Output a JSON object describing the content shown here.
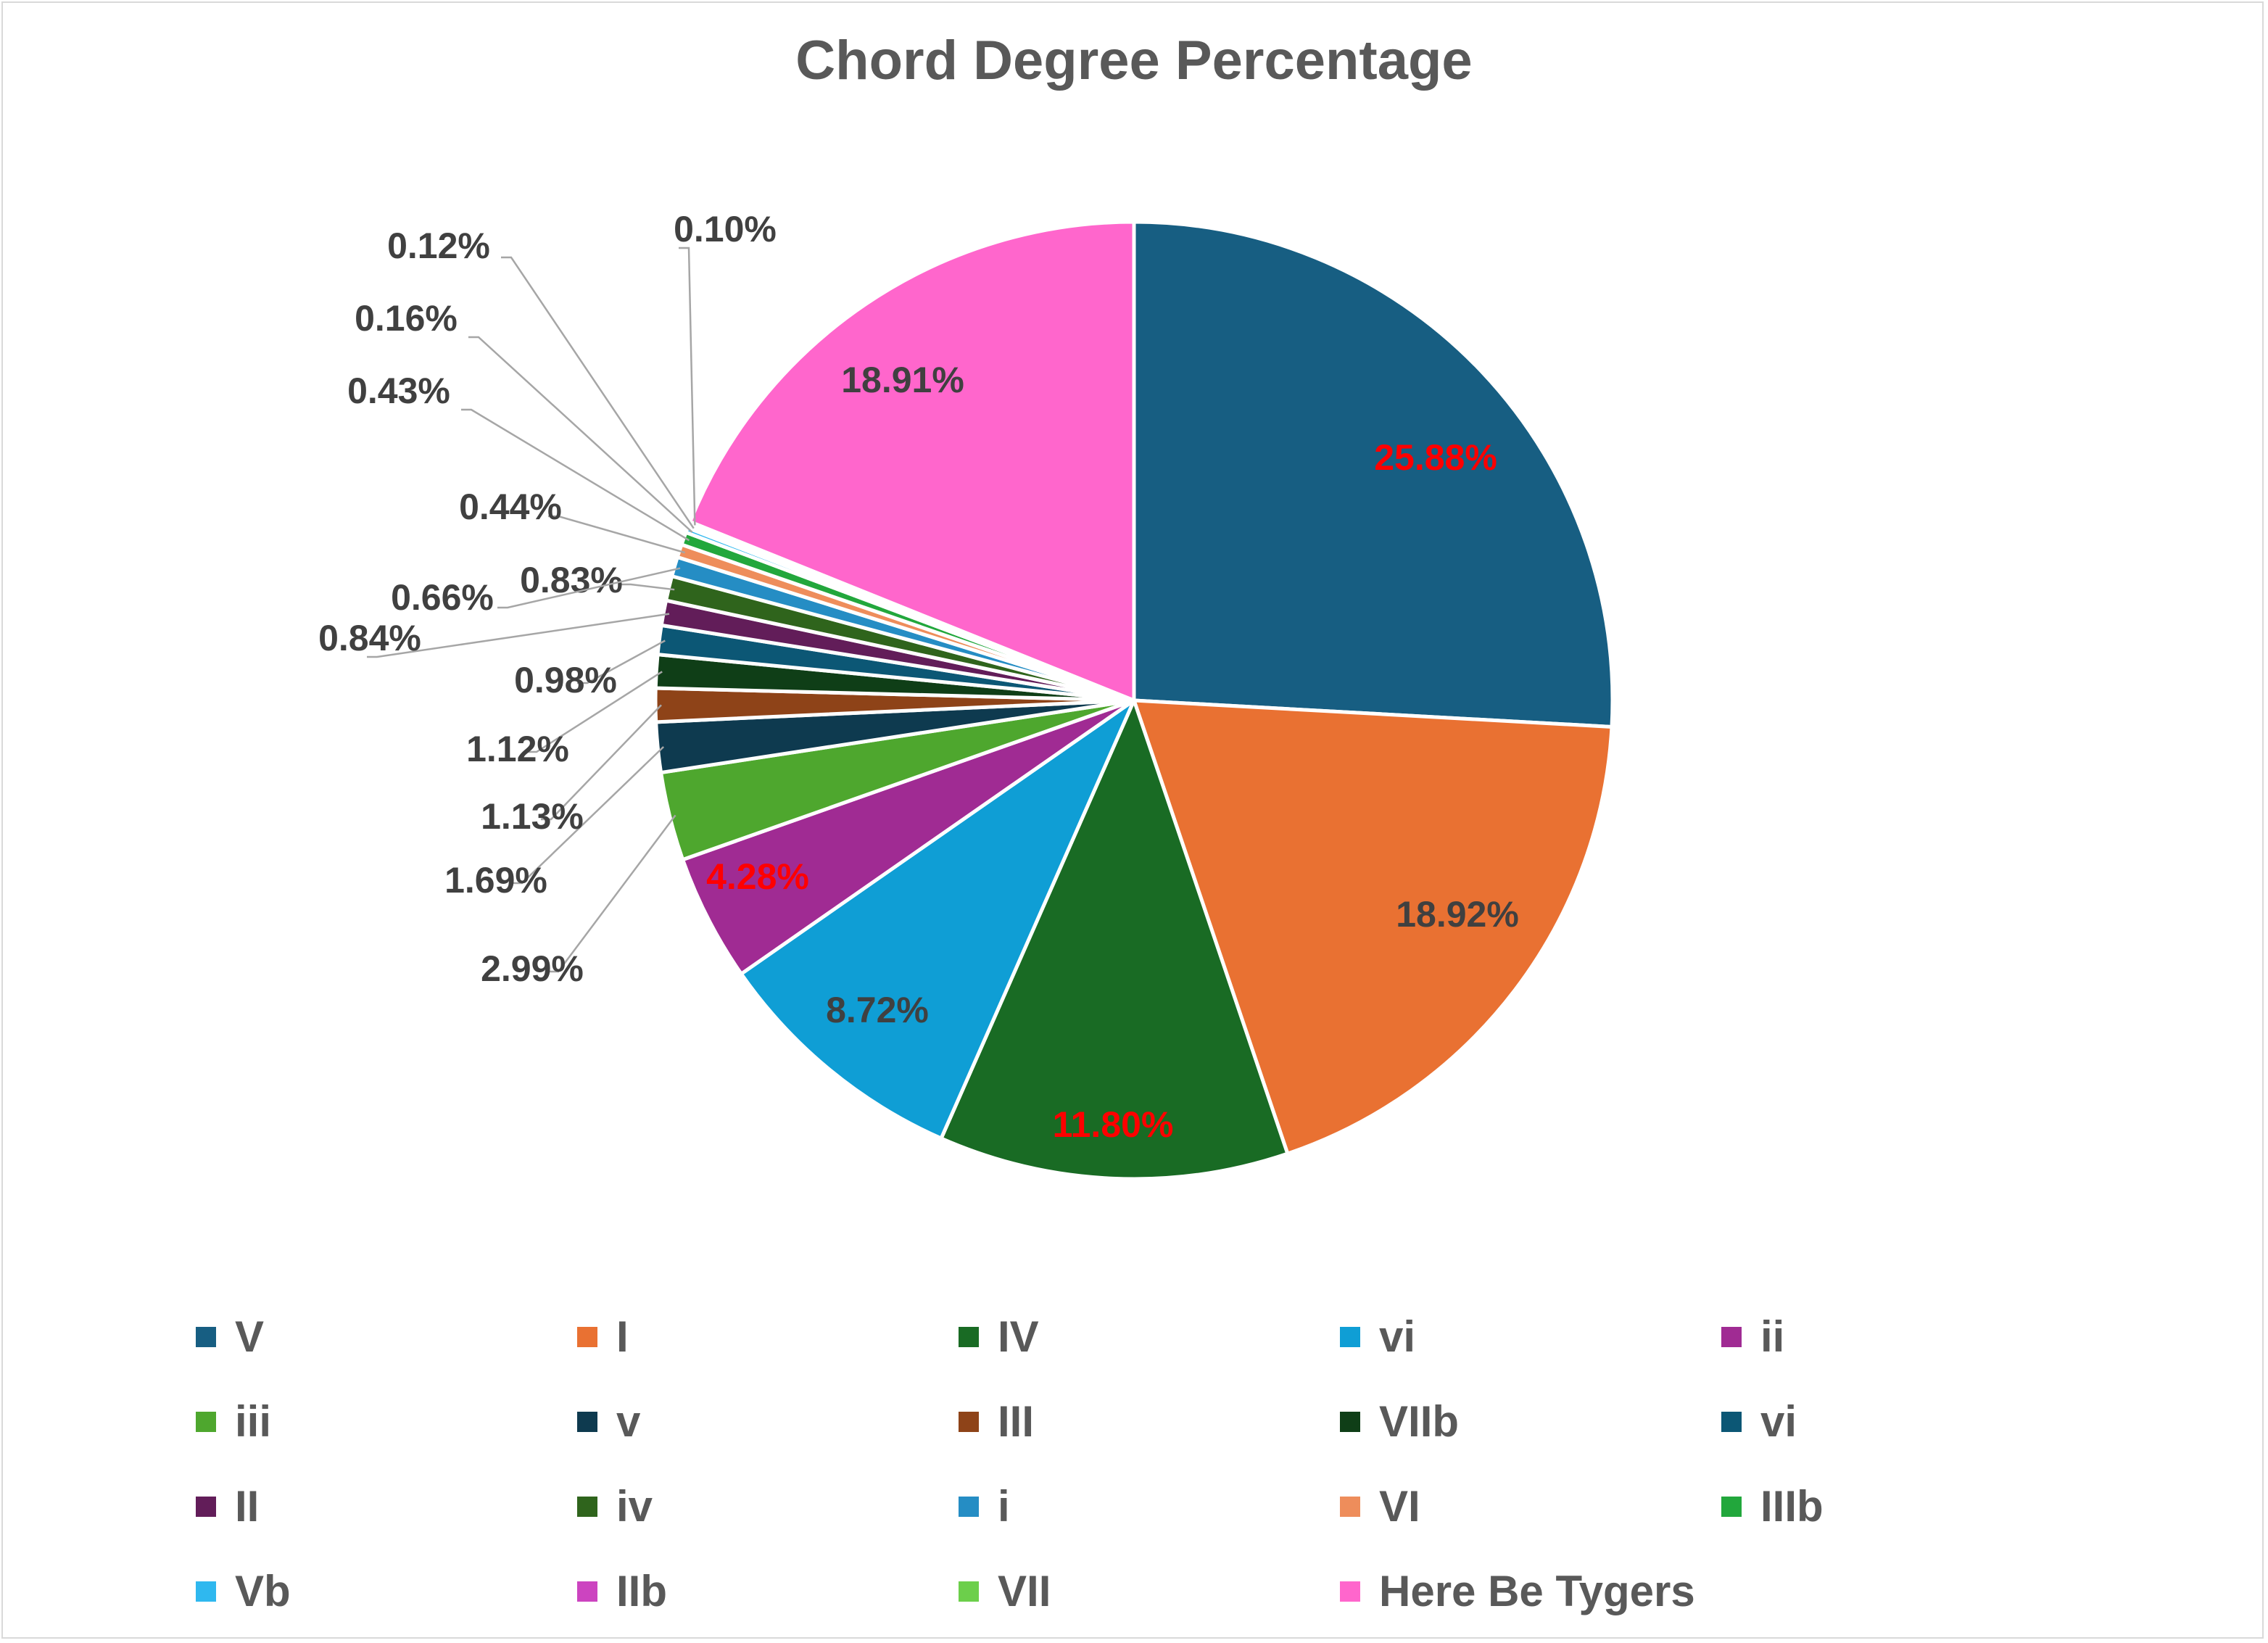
{
  "chart_data": {
    "type": "pie",
    "title": "Chord Degree Percentage",
    "legend_position": "bottom",
    "slices": [
      {
        "name": "V",
        "value": 25.88,
        "label": "25.88%",
        "color": "#175e82",
        "label_color": "#ff0000"
      },
      {
        "name": "I",
        "value": 18.92,
        "label": "18.92%",
        "color": "#e97132",
        "label_color": "#404040"
      },
      {
        "name": "IV",
        "value": 11.8,
        "label": "11.80%",
        "color": "#196b24",
        "label_color": "#ff0000"
      },
      {
        "name": "vi",
        "value": 8.72,
        "label": "8.72%",
        "color": "#0f9ed5",
        "label_color": "#404040"
      },
      {
        "name": "ii",
        "value": 4.28,
        "label": "4.28%",
        "color": "#a02b93",
        "label_color": "#ff0000"
      },
      {
        "name": "iii",
        "value": 2.99,
        "label": "2.99%",
        "color": "#4ea72e",
        "label_color": "#404040"
      },
      {
        "name": "v",
        "value": 1.69,
        "label": "1.69%",
        "color": "#0e3a4f",
        "label_color": "#404040"
      },
      {
        "name": "III",
        "value": 1.13,
        "label": "1.13%",
        "color": "#8e4318",
        "label_color": "#404040"
      },
      {
        "name": "VIIb",
        "value": 1.12,
        "label": "1.12%",
        "color": "#0f3e17",
        "label_color": "#404040"
      },
      {
        "name": "vi",
        "value": 0.98,
        "label": "0.98%",
        "color": "#0c5775",
        "label_color": "#404040"
      },
      {
        "name": "II",
        "value": 0.84,
        "label": "0.84%",
        "color": "#621d59",
        "label_color": "#404040"
      },
      {
        "name": "iv",
        "value": 0.83,
        "label": "0.83%",
        "color": "#2f641c",
        "label_color": "#404040"
      },
      {
        "name": "i",
        "value": 0.66,
        "label": "0.66%",
        "color": "#258dc4",
        "label_color": "#404040"
      },
      {
        "name": "VI",
        "value": 0.44,
        "label": "0.44%",
        "color": "#ee8d5b",
        "label_color": "#404040"
      },
      {
        "name": "IIIb",
        "value": 0.43,
        "label": "0.43%",
        "color": "#22a73c",
        "label_color": "#404040"
      },
      {
        "name": "Vb",
        "value": 0.16,
        "label": "0.16%",
        "color": "#2fb8ef",
        "label_color": "#404040"
      },
      {
        "name": "IIb",
        "value": 0.12,
        "label": "0.12%",
        "color": "#cc44c0",
        "label_color": "#404040"
      },
      {
        "name": "VII",
        "value": 0.1,
        "label": "0.10%",
        "color": "#6ccf4b",
        "label_color": "#404040"
      },
      {
        "name": "Here Be Tygers",
        "value": 18.91,
        "label": "18.91%",
        "color": "#ff66cc",
        "label_color": "#404040"
      }
    ]
  }
}
